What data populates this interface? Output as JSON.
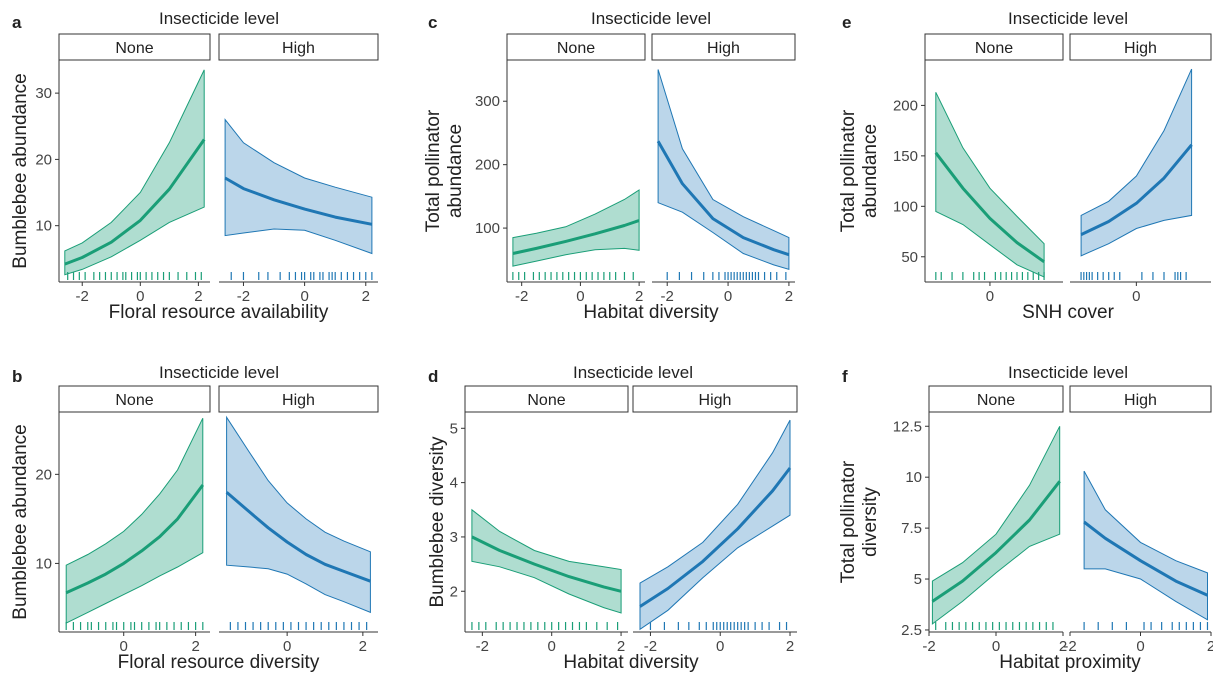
{
  "colors": {
    "none": "#1a9e77",
    "high": "#1f77b4",
    "none_fill": "#1a9e77",
    "high_fill": "#3b8ac4"
  },
  "chart_data": [
    {
      "panel": "a",
      "type": "line",
      "facet_title": "Insecticide level",
      "strips": [
        "None",
        "High"
      ],
      "xlabel": "Floral resource availability",
      "ylabel": "Bumblebee abundance",
      "xlim": [
        -2.8,
        2.4
      ],
      "ylim": [
        1.5,
        35
      ],
      "xticks": [
        -2,
        0,
        2
      ],
      "yticks": [
        10,
        20,
        30
      ],
      "series": [
        {
          "name": "None",
          "x": [
            -2.6,
            -2.0,
            -1.0,
            0.0,
            1.0,
            2.2
          ],
          "y": [
            4.2,
            5.2,
            7.5,
            10.8,
            15.5,
            23.0
          ],
          "lower": [
            2.6,
            3.4,
            5.3,
            7.8,
            10.5,
            12.8
          ],
          "upper": [
            6.2,
            7.4,
            10.5,
            15.0,
            22.5,
            33.5
          ]
        },
        {
          "name": "High",
          "x": [
            -2.6,
            -2.0,
            -1.0,
            0.0,
            1.0,
            2.2
          ],
          "y": [
            17.2,
            15.6,
            13.9,
            12.5,
            11.3,
            10.2
          ],
          "lower": [
            8.5,
            8.9,
            9.5,
            9.3,
            7.8,
            5.8
          ],
          "upper": [
            26.0,
            22.5,
            19.5,
            17.2,
            15.8,
            14.3
          ]
        }
      ],
      "rug": [
        {
          "series": "None",
          "x": [
            -2.5,
            -2.3,
            -2.1,
            -1.9,
            -1.6,
            -1.4,
            -1.2,
            -1.0,
            -0.8,
            -0.6,
            -0.5,
            -0.3,
            -0.1,
            0.0,
            0.2,
            0.4,
            0.6,
            0.8,
            1.0,
            1.3,
            1.6,
            1.9,
            2.1
          ]
        },
        {
          "series": "High",
          "x": [
            -2.4,
            -2.0,
            -1.5,
            -1.2,
            -0.8,
            -0.5,
            -0.3,
            -0.1,
            0.0,
            0.2,
            0.3,
            0.5,
            0.6,
            0.8,
            0.9,
            1.0,
            1.2,
            1.4,
            1.6,
            1.8,
            2.0,
            2.2
          ]
        }
      ]
    },
    {
      "panel": "b",
      "type": "line",
      "facet_title": "Insecticide level",
      "strips": [
        "None",
        "High"
      ],
      "xlabel": "Floral resource diversity",
      "ylabel": "Bumblebee abundance",
      "xlim": [
        -1.8,
        2.4
      ],
      "ylim": [
        2.3,
        27
      ],
      "xticks": [
        0,
        2
      ],
      "yticks": [
        10,
        20
      ],
      "series": [
        {
          "name": "None",
          "x": [
            -1.6,
            -1.0,
            -0.5,
            0.0,
            0.5,
            1.0,
            1.5,
            2.2
          ],
          "y": [
            6.7,
            7.8,
            8.8,
            10.0,
            11.4,
            13.0,
            15.0,
            18.8
          ],
          "lower": [
            3.3,
            4.5,
            5.5,
            6.5,
            7.5,
            8.6,
            9.6,
            11.2
          ],
          "upper": [
            9.8,
            11.0,
            12.2,
            13.6,
            15.5,
            17.8,
            20.5,
            26.3
          ]
        },
        {
          "name": "High",
          "x": [
            -1.6,
            -1.0,
            -0.5,
            0.0,
            0.5,
            1.0,
            1.5,
            2.2
          ],
          "y": [
            18.0,
            15.8,
            14.0,
            12.4,
            11.0,
            9.9,
            9.1,
            8.0
          ],
          "lower": [
            9.8,
            9.6,
            9.4,
            8.8,
            7.7,
            6.5,
            5.7,
            4.5
          ],
          "upper": [
            26.4,
            22.5,
            19.3,
            16.8,
            15.0,
            13.5,
            12.5,
            11.3
          ]
        }
      ],
      "rug": [
        {
          "series": "None",
          "x": [
            -1.6,
            -1.4,
            -1.2,
            -1.0,
            -0.9,
            -0.7,
            -0.5,
            -0.3,
            -0.2,
            0.0,
            0.2,
            0.3,
            0.5,
            0.7,
            0.9,
            1.0,
            1.2,
            1.4,
            1.6,
            1.8,
            2.0,
            2.2
          ]
        },
        {
          "series": "High",
          "x": [
            -1.5,
            -1.3,
            -1.1,
            -0.9,
            -0.7,
            -0.5,
            -0.3,
            -0.1,
            0.1,
            0.3,
            0.5,
            0.7,
            0.9,
            1.1,
            1.3,
            1.5,
            1.7,
            1.9,
            2.1
          ]
        }
      ]
    },
    {
      "panel": "c",
      "type": "line",
      "facet_title": "Insecticide level",
      "strips": [
        "None",
        "High"
      ],
      "xlabel": "Habitat diversity",
      "ylabel": "Total pollinator abundance",
      "xlim": [
        -2.5,
        2.2
      ],
      "ylim": [
        15,
        365
      ],
      "xticks": [
        -2,
        0,
        2
      ],
      "yticks": [
        100,
        200,
        300
      ],
      "series": [
        {
          "name": "None",
          "x": [
            -2.3,
            -1.5,
            -0.5,
            0.5,
            1.5,
            2.0
          ],
          "y": [
            60,
            68,
            79,
            91,
            104,
            112
          ],
          "lower": [
            40,
            48,
            58,
            66,
            68,
            65
          ],
          "upper": [
            85,
            92,
            102,
            122,
            145,
            160
          ]
        },
        {
          "name": "High",
          "x": [
            -2.3,
            -1.5,
            -0.5,
            0.5,
            1.5,
            2.0
          ],
          "y": [
            237,
            170,
            115,
            85,
            66,
            58
          ],
          "lower": [
            140,
            125,
            93,
            60,
            42,
            35
          ],
          "upper": [
            350,
            225,
            145,
            118,
            96,
            85
          ]
        }
      ],
      "rug": [
        {
          "series": "None",
          "x": [
            -2.3,
            -2.1,
            -1.9,
            -1.6,
            -1.4,
            -1.2,
            -1.0,
            -0.8,
            -0.6,
            -0.4,
            -0.2,
            0.0,
            0.2,
            0.4,
            0.6,
            0.8,
            1.0,
            1.2,
            1.5,
            1.8
          ]
        },
        {
          "series": "High",
          "x": [
            -2.0,
            -1.6,
            -1.2,
            -0.8,
            -0.5,
            -0.3,
            -0.1,
            0.0,
            0.1,
            0.2,
            0.3,
            0.4,
            0.5,
            0.6,
            0.7,
            0.8,
            0.9,
            1.0,
            1.2,
            1.4,
            1.6,
            1.9
          ]
        }
      ]
    },
    {
      "panel": "d",
      "type": "line",
      "facet_title": "Insecticide level",
      "strips": [
        "None",
        "High"
      ],
      "xlabel": "Habitat diversity",
      "ylabel": "Bumblebee diversity",
      "xlim": [
        -2.5,
        2.2
      ],
      "ylim": [
        1.25,
        5.3
      ],
      "xticks": [
        -2,
        0,
        2
      ],
      "yticks": [
        2,
        3,
        4,
        5
      ],
      "series": [
        {
          "name": "None",
          "x": [
            -2.3,
            -1.5,
            -0.5,
            0.5,
            1.5,
            2.0
          ],
          "y": [
            3.0,
            2.75,
            2.5,
            2.27,
            2.08,
            2.0
          ],
          "lower": [
            2.55,
            2.45,
            2.25,
            1.95,
            1.7,
            1.6
          ],
          "upper": [
            3.5,
            3.1,
            2.75,
            2.55,
            2.45,
            2.4
          ]
        },
        {
          "name": "High",
          "x": [
            -2.3,
            -1.5,
            -0.5,
            0.5,
            1.5,
            2.0
          ],
          "y": [
            1.72,
            2.05,
            2.55,
            3.15,
            3.85,
            4.27
          ],
          "lower": [
            1.3,
            1.65,
            2.25,
            2.8,
            3.2,
            3.4
          ],
          "upper": [
            2.15,
            2.45,
            2.9,
            3.6,
            4.55,
            5.15
          ]
        }
      ],
      "rug": [
        {
          "series": "None",
          "x": [
            -2.3,
            -2.1,
            -1.9,
            -1.6,
            -1.4,
            -1.2,
            -1.0,
            -0.8,
            -0.6,
            -0.4,
            -0.2,
            0.0,
            0.2,
            0.4,
            0.6,
            0.8,
            1.0,
            1.3,
            1.6,
            1.9
          ]
        },
        {
          "series": "High",
          "x": [
            -2.0,
            -1.6,
            -1.2,
            -0.9,
            -0.6,
            -0.4,
            -0.2,
            -0.1,
            0.0,
            0.1,
            0.2,
            0.3,
            0.4,
            0.5,
            0.6,
            0.7,
            0.8,
            1.0,
            1.2,
            1.4,
            1.7,
            1.9
          ]
        }
      ]
    },
    {
      "panel": "e",
      "type": "line",
      "facet_title": "Insecticide level",
      "strips": [
        "None",
        "High"
      ],
      "xlabel": "SNH cover",
      "ylabel": "Total pollinator abundance",
      "xlim": [
        -1.2,
        1.35
      ],
      "ylim": [
        25,
        245
      ],
      "xticks": [
        0
      ],
      "yticks": [
        50,
        100,
        150,
        200
      ],
      "series": [
        {
          "name": "None",
          "x": [
            -1.0,
            -0.5,
            0.0,
            0.5,
            1.0
          ],
          "y": [
            153,
            118,
            88,
            64,
            45
          ],
          "lower": [
            95,
            82,
            62,
            42,
            30
          ],
          "upper": [
            213,
            158,
            118,
            90,
            63
          ]
        },
        {
          "name": "High",
          "x": [
            -1.0,
            -0.5,
            0.0,
            0.5,
            1.0
          ],
          "y": [
            72,
            85,
            103,
            128,
            161
          ],
          "lower": [
            51,
            63,
            78,
            86,
            91
          ],
          "upper": [
            91,
            105,
            130,
            175,
            236
          ]
        }
      ],
      "rug": [
        {
          "series": "None",
          "x": [
            -1.0,
            -0.9,
            -0.7,
            -0.5,
            -0.3,
            -0.2,
            -0.1,
            0.1,
            0.2,
            0.3,
            0.4,
            0.5,
            0.6,
            0.7,
            0.8,
            0.9,
            1.0
          ]
        },
        {
          "series": "High",
          "x": [
            -1.0,
            -0.95,
            -0.9,
            -0.85,
            -0.8,
            -0.7,
            -0.6,
            -0.5,
            -0.4,
            -0.3,
            0.1,
            0.3,
            0.5,
            0.7,
            0.75,
            0.8,
            0.9
          ]
        }
      ]
    },
    {
      "panel": "f",
      "type": "line",
      "facet_title": "Insecticide level",
      "strips": [
        "None",
        "High"
      ],
      "xlabel": "Habitat proximity",
      "ylabel": "Total pollinator diversity",
      "xlim": [
        -2.0,
        2.0
      ],
      "ylim": [
        2.4,
        13.2
      ],
      "xticks": [
        -2,
        0,
        2
      ],
      "yticks": [
        2.5,
        5.0,
        7.5,
        10.0,
        12.5
      ],
      "series": [
        {
          "name": "None",
          "x": [
            -1.9,
            -1.0,
            0.0,
            1.0,
            1.9
          ],
          "y": [
            3.9,
            4.9,
            6.3,
            7.9,
            9.8
          ],
          "lower": [
            2.8,
            3.9,
            5.3,
            6.6,
            7.2
          ],
          "upper": [
            4.9,
            5.8,
            7.2,
            9.6,
            12.5
          ]
        },
        {
          "name": "High",
          "x": [
            -1.6,
            -1.0,
            0.0,
            1.0,
            1.9
          ],
          "y": [
            7.8,
            7.0,
            5.9,
            4.9,
            4.2
          ],
          "lower": [
            5.5,
            5.5,
            5.0,
            3.9,
            3.0
          ],
          "upper": [
            10.3,
            8.4,
            6.8,
            5.9,
            5.3
          ]
        }
      ],
      "rug": [
        {
          "series": "None",
          "x": [
            -1.8,
            -1.5,
            -1.3,
            -1.1,
            -0.9,
            -0.7,
            -0.5,
            -0.3,
            -0.1,
            0.1,
            0.3,
            0.5,
            0.7,
            0.9,
            1.1,
            1.3,
            1.5,
            1.7
          ]
        },
        {
          "series": "High",
          "x": [
            -1.6,
            -1.2,
            -0.8,
            -0.4,
            0.1,
            0.3,
            0.6,
            0.9,
            1.1,
            1.3,
            1.5,
            1.7,
            1.9
          ]
        }
      ]
    }
  ]
}
